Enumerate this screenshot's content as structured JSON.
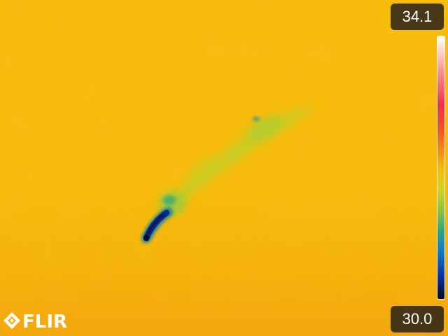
{
  "scale": {
    "max_temp": "34.1",
    "min_temp": "30.0"
  },
  "brand": {
    "logo_text": "FLIR"
  },
  "colors": {
    "background": "#f7b90a",
    "object_green": "#c9cf22",
    "object_cold_tip": "#0b2a8c",
    "palette": "iron-rainbow"
  },
  "icons": {
    "logo_mark": "flir-diamond-logo-icon"
  }
}
